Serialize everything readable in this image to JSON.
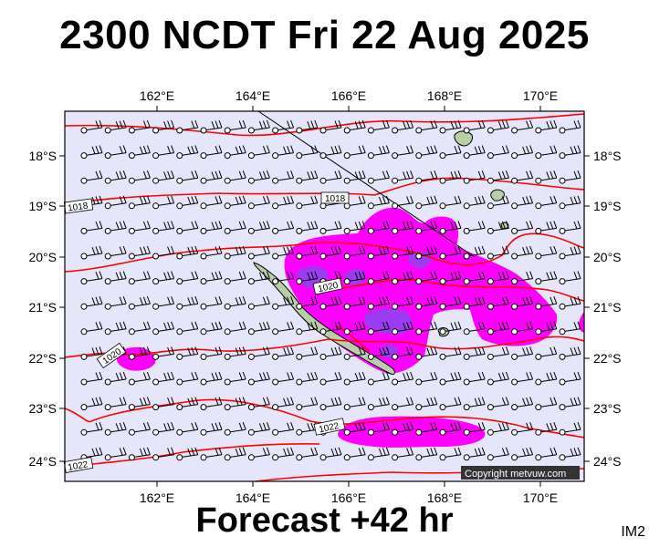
{
  "title": "2300 NCDT Fri 22 Aug 2025",
  "footer": "Forecast +42 hr",
  "image_id": "IM2",
  "copyright": "Copyright metvuw.com",
  "axes": {
    "lon_labels": [
      "162°E",
      "164°E",
      "166°E",
      "168°E",
      "170°E"
    ],
    "lat_labels": [
      "18°S",
      "19°S",
      "20°S",
      "21°S",
      "22°S",
      "23°S",
      "24°S"
    ]
  },
  "isobar_labels": [
    "1018",
    "1018",
    "1020",
    "1020",
    "1022",
    "1022"
  ],
  "colors": {
    "background": "#e6e6fa",
    "isobar": "#ff0000",
    "rain_light": "#ff00ff",
    "rain_heavy": "#9a3cf0",
    "land": "#b8d0a8",
    "wind_barb": "#000000"
  }
}
